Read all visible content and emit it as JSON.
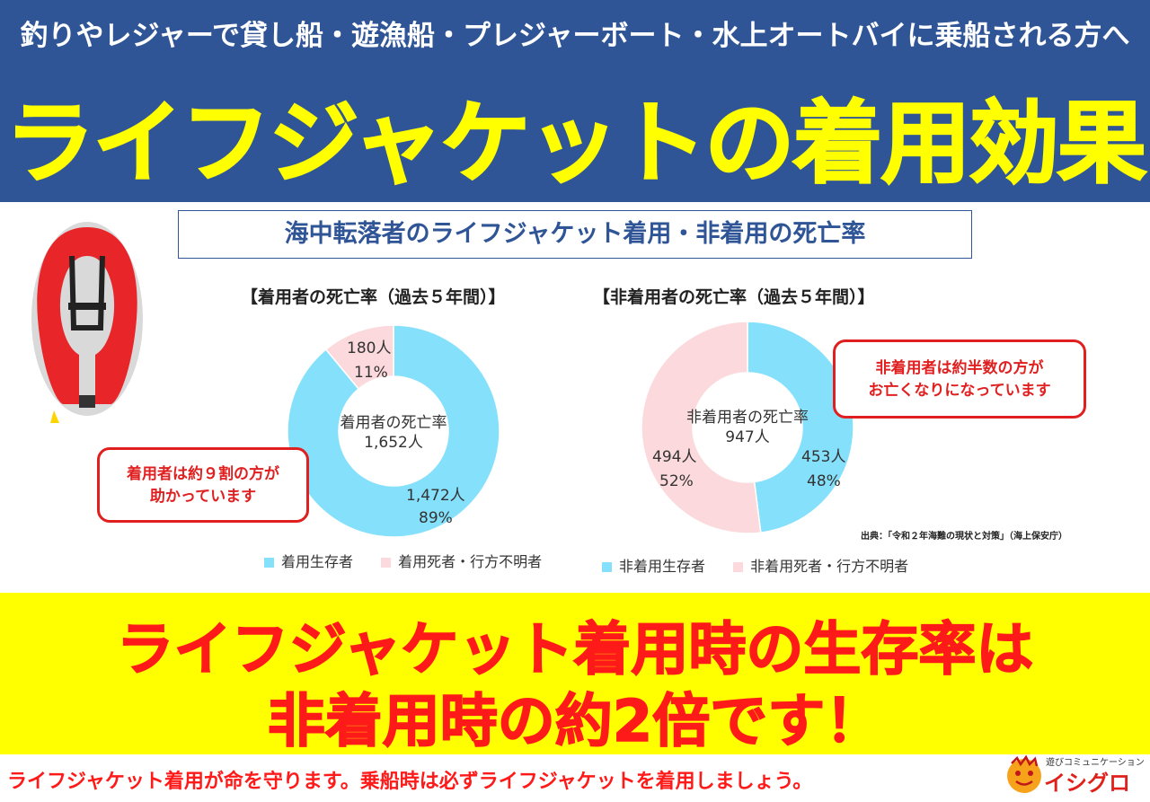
{
  "header": {
    "subtitle": "釣りやレジャーで貸し船・遊漁船・プレジャーボート・水上オートバイに乗船される方へ",
    "title": "ライフジャケットの着用効果"
  },
  "section_title": "海中転落者のライフジャケット着用・非着用の死亡率",
  "colors": {
    "header_bg": "#2f5597",
    "title_yellow": "#ffff00",
    "survivor_blue": "#85e0fb",
    "death_pink": "#fbd9dc",
    "accent_red": "#ff1a1a"
  },
  "chart_data": [
    {
      "type": "pie",
      "title": "【着用者の死亡率（過去５年間）】",
      "center_label_line1": "着用者の死亡率",
      "center_label_line2": "1,652人",
      "slices": [
        {
          "name": "着用生存者",
          "count_label": "1,472人",
          "pct_label": "89%",
          "value": 89,
          "color": "#85e0fb"
        },
        {
          "name": "着用死者・行方不明者",
          "count_label": "180人",
          "pct_label": "11%",
          "value": 11,
          "color": "#fbd9dc"
        }
      ],
      "legend": [
        "着用生存者",
        "着用死者・行方不明者"
      ],
      "callout": [
        "着用者は約９割の方が",
        "助かっています"
      ]
    },
    {
      "type": "pie",
      "title": "【非着用者の死亡率（過去５年間）】",
      "center_label_line1": "非着用者の死亡率",
      "center_label_line2": "947人",
      "slices": [
        {
          "name": "非着用生存者",
          "count_label": "453人",
          "pct_label": "48%",
          "value": 48,
          "color": "#85e0fb"
        },
        {
          "name": "非着用死者・行方不明者",
          "count_label": "494人",
          "pct_label": "52%",
          "value": 52,
          "color": "#fbd9dc"
        }
      ],
      "legend": [
        "非着用生存者",
        "非着用死者・行方不明者"
      ],
      "callout": [
        "非着用者は約半数の方が",
        "お亡くなりになっています"
      ]
    }
  ],
  "source": "出典：「令和２年海難の現状と対策」（海上保安庁）",
  "banner": {
    "line1": "ライフジャケット着用時の生存率は",
    "line2": "非着用時の約2倍です！"
  },
  "footer": "ライフジャケット着用が命を守ります。乗船時は必ずライフジャケットを着用しましょう。",
  "brand": {
    "tagline": "遊びコミュニケーション",
    "name": "イシグロ"
  },
  "icons": [
    "life-jacket-icon",
    "brand-mascot-icon"
  ]
}
